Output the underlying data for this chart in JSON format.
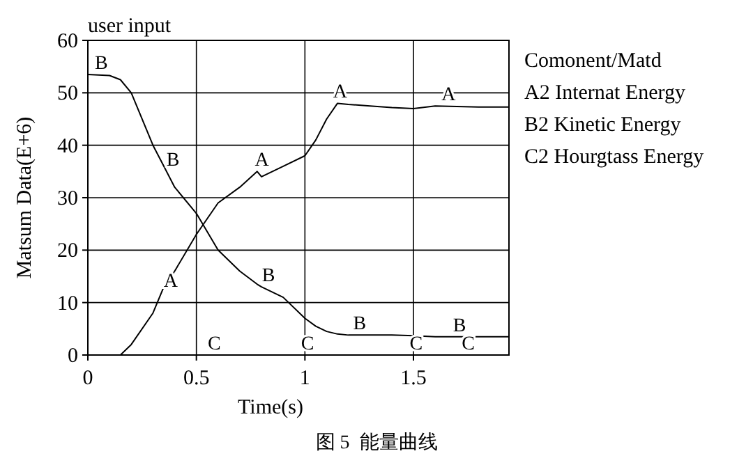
{
  "chart_data": {
    "type": "line",
    "title": "user input",
    "xlabel": "Time(s)",
    "ylabel": "Matsum Data(E+6)",
    "legend_title": "Comonent/Matd",
    "legend": "right",
    "grid": true,
    "xlim": [
      0,
      1.94
    ],
    "ylim": [
      0,
      60
    ],
    "xticks": [
      0,
      0.5,
      1,
      1.5
    ],
    "yticks": [
      0,
      10,
      20,
      30,
      40,
      50,
      60
    ],
    "x": [
      0,
      0.1,
      0.15,
      0.2,
      0.3,
      0.35,
      0.4,
      0.5,
      0.6,
      0.7,
      0.78,
      0.8,
      0.9,
      1.0,
      1.05,
      1.1,
      1.15,
      1.2,
      1.3,
      1.4,
      1.5,
      1.6,
      1.8,
      1.94
    ],
    "series": [
      {
        "name": "A2 Internat Energy",
        "color": "#000000",
        "values": [
          0,
          0,
          0,
          2,
          8,
          13,
          16,
          23,
          29,
          32,
          35,
          34,
          36,
          38,
          41,
          45,
          48,
          47.8,
          47.5,
          47.2,
          47,
          47.5,
          47.3,
          47.3
        ]
      },
      {
        "name": "B2 Kinetic Energy",
        "color": "#000000",
        "values": [
          53.5,
          53.3,
          52.5,
          50,
          40,
          36,
          32,
          27,
          20,
          16,
          13.5,
          13,
          11,
          7,
          5.5,
          4.5,
          4,
          3.8,
          3.8,
          3.8,
          3.7,
          3.5,
          3.5,
          3.5
        ]
      },
      {
        "name": "C2 Hourgtass Energy",
        "color": "#000000",
        "values": [
          0,
          0,
          0,
          0,
          0,
          0,
          0,
          0,
          0,
          0,
          0,
          0,
          0,
          0,
          0,
          0,
          0,
          0,
          0,
          0,
          0,
          0,
          0,
          0
        ]
      }
    ],
    "annotations": [
      {
        "text": "A",
        "x": 0.35,
        "y": 12
      },
      {
        "text": "A",
        "x": 0.77,
        "y": 35
      },
      {
        "text": "A",
        "x": 1.13,
        "y": 48
      },
      {
        "text": "A",
        "x": 1.63,
        "y": 47.5
      },
      {
        "text": "B",
        "x": 0.03,
        "y": 53.5
      },
      {
        "text": "B",
        "x": 0.36,
        "y": 35
      },
      {
        "text": "B",
        "x": 0.8,
        "y": 13
      },
      {
        "text": "B",
        "x": 1.22,
        "y": 3.8
      },
      {
        "text": "B",
        "x": 1.68,
        "y": 3.5
      },
      {
        "text": "C",
        "x": 0.55,
        "y": 0
      },
      {
        "text": "C",
        "x": 0.98,
        "y": 0
      },
      {
        "text": "C",
        "x": 1.48,
        "y": 0
      },
      {
        "text": "C",
        "x": 1.72,
        "y": 0
      },
      "图 5  能量曲线"
    ]
  }
}
